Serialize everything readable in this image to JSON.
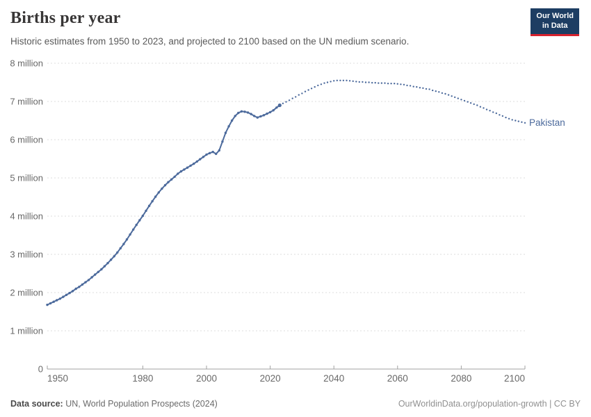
{
  "header": {
    "title": "Births per year",
    "subtitle": "Historic estimates from 1950 to 2023, and projected to 2100 based on the UN medium scenario.",
    "logo": {
      "line1": "Our World",
      "line2": "in Data",
      "bg": "#1d3d63",
      "accent": "#d8222e"
    }
  },
  "footer": {
    "source_label": "Data source:",
    "source_text": " UN, World Population Prospects (2024)",
    "right_text": "OurWorldinData.org/population-growth | CC BY"
  },
  "chart_data": {
    "type": "line",
    "title": "Births per year",
    "entity_label": "Pakistan",
    "unit": "births per year",
    "xlabel": "",
    "ylabel": "",
    "xlim": [
      1950,
      2100
    ],
    "ylim_millions": [
      0,
      8
    ],
    "grid": "dashed-horizontal",
    "legend_position": "end-of-line-label",
    "x_ticks": [
      1950,
      1980,
      2000,
      2020,
      2040,
      2060,
      2080,
      2100
    ],
    "y_ticks": [
      {
        "value": 0,
        "label": "0"
      },
      {
        "value": 1,
        "label": "1 million"
      },
      {
        "value": 2,
        "label": "2 million"
      },
      {
        "value": 3,
        "label": "3 million"
      },
      {
        "value": 4,
        "label": "4 million"
      },
      {
        "value": 5,
        "label": "5 million"
      },
      {
        "value": 6,
        "label": "6 million"
      },
      {
        "value": 7,
        "label": "7 million"
      },
      {
        "value": 8,
        "label": "8 million"
      }
    ],
    "colors": {
      "line": "#4c6a9c",
      "grid": "#dddddd",
      "axis": "#a1a1a1",
      "tick_text": "#686868"
    },
    "series": [
      {
        "name": "Pakistan — historic estimates (1950–2023)",
        "style": "solid-with-markers",
        "points_year_millions": [
          [
            1950,
            1.68
          ],
          [
            1951,
            1.72
          ],
          [
            1952,
            1.76
          ],
          [
            1953,
            1.8
          ],
          [
            1954,
            1.84
          ],
          [
            1955,
            1.89
          ],
          [
            1956,
            1.94
          ],
          [
            1957,
            1.99
          ],
          [
            1958,
            2.04
          ],
          [
            1959,
            2.1
          ],
          [
            1960,
            2.15
          ],
          [
            1961,
            2.21
          ],
          [
            1962,
            2.27
          ],
          [
            1963,
            2.33
          ],
          [
            1964,
            2.4
          ],
          [
            1965,
            2.47
          ],
          [
            1966,
            2.54
          ],
          [
            1967,
            2.61
          ],
          [
            1968,
            2.69
          ],
          [
            1969,
            2.77
          ],
          [
            1970,
            2.86
          ],
          [
            1971,
            2.95
          ],
          [
            1972,
            3.05
          ],
          [
            1973,
            3.16
          ],
          [
            1974,
            3.27
          ],
          [
            1975,
            3.39
          ],
          [
            1976,
            3.52
          ],
          [
            1977,
            3.65
          ],
          [
            1978,
            3.77
          ],
          [
            1979,
            3.89
          ],
          [
            1980,
            4.01
          ],
          [
            1981,
            4.14
          ],
          [
            1982,
            4.27
          ],
          [
            1983,
            4.39
          ],
          [
            1984,
            4.51
          ],
          [
            1985,
            4.62
          ],
          [
            1986,
            4.72
          ],
          [
            1987,
            4.81
          ],
          [
            1988,
            4.89
          ],
          [
            1989,
            4.96
          ],
          [
            1990,
            5.03
          ],
          [
            1991,
            5.11
          ],
          [
            1992,
            5.17
          ],
          [
            1993,
            5.22
          ],
          [
            1994,
            5.27
          ],
          [
            1995,
            5.32
          ],
          [
            1996,
            5.37
          ],
          [
            1997,
            5.43
          ],
          [
            1998,
            5.49
          ],
          [
            1999,
            5.55
          ],
          [
            2000,
            5.61
          ],
          [
            2001,
            5.65
          ],
          [
            2002,
            5.68
          ],
          [
            2003,
            5.63
          ],
          [
            2004,
            5.72
          ],
          [
            2005,
            5.95
          ],
          [
            2006,
            6.18
          ],
          [
            2007,
            6.35
          ],
          [
            2008,
            6.5
          ],
          [
            2009,
            6.62
          ],
          [
            2010,
            6.7
          ],
          [
            2011,
            6.74
          ],
          [
            2012,
            6.73
          ],
          [
            2013,
            6.71
          ],
          [
            2014,
            6.67
          ],
          [
            2015,
            6.62
          ],
          [
            2016,
            6.58
          ],
          [
            2017,
            6.61
          ],
          [
            2018,
            6.64
          ],
          [
            2019,
            6.68
          ],
          [
            2020,
            6.72
          ],
          [
            2021,
            6.77
          ],
          [
            2022,
            6.84
          ],
          [
            2023,
            6.9
          ]
        ]
      },
      {
        "name": "Pakistan — UN medium-scenario projection (2024–2100)",
        "style": "dotted",
        "points_year_millions": [
          [
            2024,
            6.95
          ],
          [
            2025,
            6.99
          ],
          [
            2026,
            7.03
          ],
          [
            2027,
            7.08
          ],
          [
            2028,
            7.12
          ],
          [
            2029,
            7.17
          ],
          [
            2030,
            7.21
          ],
          [
            2031,
            7.26
          ],
          [
            2032,
            7.3
          ],
          [
            2033,
            7.34
          ],
          [
            2034,
            7.38
          ],
          [
            2035,
            7.42
          ],
          [
            2036,
            7.45
          ],
          [
            2037,
            7.48
          ],
          [
            2038,
            7.5
          ],
          [
            2039,
            7.52
          ],
          [
            2040,
            7.54
          ],
          [
            2041,
            7.55
          ],
          [
            2042,
            7.55
          ],
          [
            2043,
            7.55
          ],
          [
            2044,
            7.55
          ],
          [
            2045,
            7.54
          ],
          [
            2046,
            7.53
          ],
          [
            2047,
            7.52
          ],
          [
            2048,
            7.51
          ],
          [
            2049,
            7.51
          ],
          [
            2050,
            7.5
          ],
          [
            2051,
            7.5
          ],
          [
            2052,
            7.49
          ],
          [
            2053,
            7.49
          ],
          [
            2054,
            7.48
          ],
          [
            2055,
            7.48
          ],
          [
            2056,
            7.48
          ],
          [
            2057,
            7.47
          ],
          [
            2058,
            7.47
          ],
          [
            2059,
            7.47
          ],
          [
            2060,
            7.46
          ],
          [
            2061,
            7.45
          ],
          [
            2062,
            7.44
          ],
          [
            2063,
            7.42
          ],
          [
            2064,
            7.41
          ],
          [
            2065,
            7.39
          ],
          [
            2066,
            7.38
          ],
          [
            2067,
            7.36
          ],
          [
            2068,
            7.35
          ],
          [
            2069,
            7.33
          ],
          [
            2070,
            7.32
          ],
          [
            2071,
            7.29
          ],
          [
            2072,
            7.27
          ],
          [
            2073,
            7.25
          ],
          [
            2074,
            7.22
          ],
          [
            2075,
            7.2
          ],
          [
            2076,
            7.17
          ],
          [
            2077,
            7.14
          ],
          [
            2078,
            7.11
          ],
          [
            2079,
            7.08
          ],
          [
            2080,
            7.05
          ],
          [
            2081,
            7.02
          ],
          [
            2082,
            6.99
          ],
          [
            2083,
            6.96
          ],
          [
            2084,
            6.93
          ],
          [
            2085,
            6.9
          ],
          [
            2086,
            6.86
          ],
          [
            2087,
            6.83
          ],
          [
            2088,
            6.79
          ],
          [
            2089,
            6.76
          ],
          [
            2090,
            6.72
          ],
          [
            2091,
            6.69
          ],
          [
            2092,
            6.65
          ],
          [
            2093,
            6.62
          ],
          [
            2094,
            6.58
          ],
          [
            2095,
            6.55
          ],
          [
            2096,
            6.52
          ],
          [
            2097,
            6.5
          ],
          [
            2098,
            6.48
          ],
          [
            2099,
            6.46
          ],
          [
            2100,
            6.44
          ]
        ]
      }
    ]
  }
}
